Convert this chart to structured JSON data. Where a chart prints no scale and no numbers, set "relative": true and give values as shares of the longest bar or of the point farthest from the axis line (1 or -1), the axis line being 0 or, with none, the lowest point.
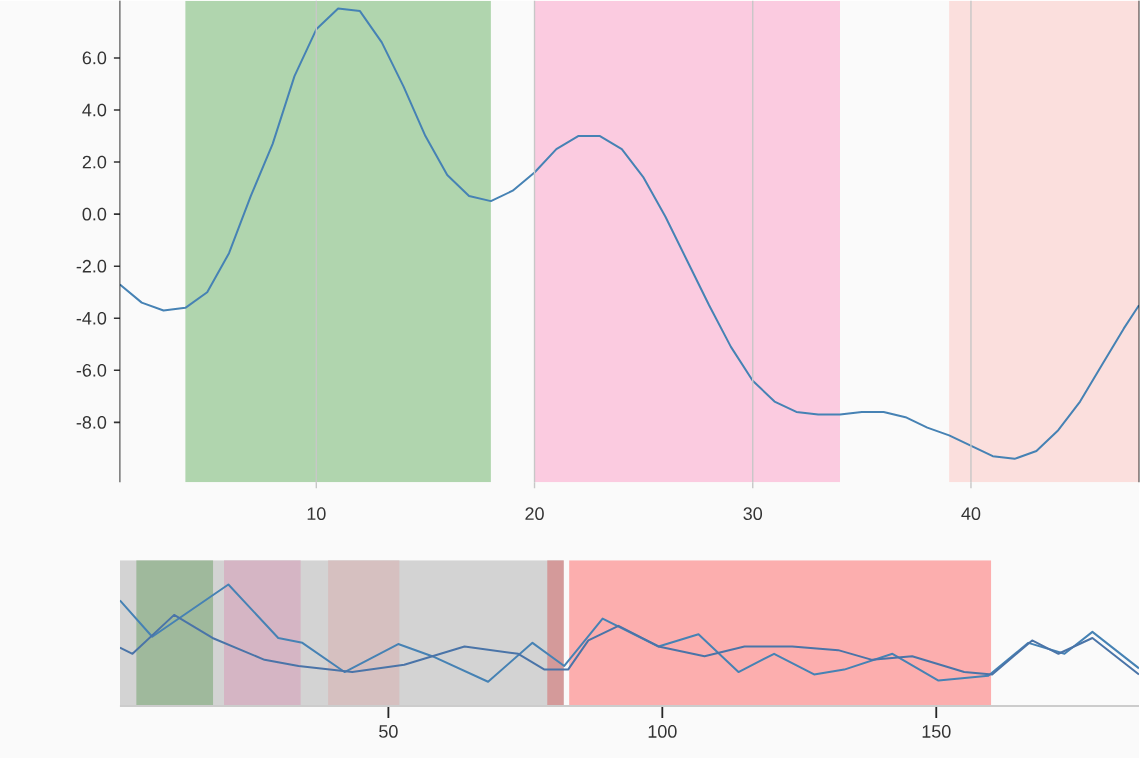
{
  "chart_data": [
    {
      "type": "line",
      "x": [
        1,
        2,
        3,
        4,
        5,
        6,
        7,
        8,
        9,
        10,
        11,
        12,
        13,
        14,
        15,
        16,
        17,
        18,
        19,
        20,
        21,
        22,
        23,
        24,
        25,
        26,
        27,
        28,
        29,
        30,
        31,
        32,
        33,
        34,
        35,
        36,
        37,
        38,
        39,
        40,
        41,
        42,
        43,
        44,
        45,
        46,
        47,
        47.7
      ],
      "values": [
        -2.7,
        -3.4,
        -3.7,
        -3.6,
        -3.0,
        -1.5,
        0.7,
        2.7,
        5.3,
        7.1,
        7.9,
        7.8,
        6.6,
        4.9,
        3.0,
        1.5,
        0.7,
        0.5,
        0.9,
        1.6,
        2.5,
        3.0,
        3.0,
        2.5,
        1.4,
        -0.1,
        -1.8,
        -3.5,
        -5.1,
        -6.4,
        -7.2,
        -7.6,
        -7.7,
        -7.7,
        -7.6,
        -7.6,
        -7.8,
        -8.2,
        -8.5,
        -8.9,
        -9.3,
        -9.4,
        -9.1,
        -8.3,
        -7.2,
        -5.8,
        -4.4,
        -3.5
      ],
      "color": "#4682b4",
      "xlim": [
        1,
        47.7
      ],
      "ylim": [
        -10.3,
        8.2
      ],
      "xticks": [
        10,
        20,
        30,
        40
      ],
      "yticks": [
        {
          "value": -8,
          "label": "-8.0"
        },
        {
          "value": -6,
          "label": "-6.0"
        },
        {
          "value": -4,
          "label": "-4.0"
        },
        {
          "value": -2,
          "label": "-2.0"
        },
        {
          "value": 0,
          "label": "0.0"
        },
        {
          "value": 2,
          "label": "2.0"
        },
        {
          "value": 4,
          "label": "4.0"
        },
        {
          "value": 6,
          "label": "6.0"
        }
      ],
      "grid": "x",
      "bands": [
        {
          "axis": "x",
          "from": 4,
          "to": 18,
          "color": "#b0d5ae"
        },
        {
          "axis": "x",
          "from": 20,
          "to": 34,
          "color": "#fbcbe0"
        },
        {
          "axis": "x",
          "from": 39,
          "to": 47.7,
          "color": "#fbdfdd"
        }
      ]
    },
    {
      "type": "line",
      "relative": true,
      "xlim": [
        1,
        187
      ],
      "xticks": [
        50,
        100,
        150
      ],
      "series": [
        {
          "color": "#4682b4",
          "x": [
            1,
            6.9,
            20.8,
            29.9,
            34.3,
            42.0,
            51.8,
            58.0,
            68.2,
            76.3,
            82.1,
            89.1,
            99.3,
            106.6,
            113.9,
            120.4,
            127.7,
            133.2,
            142.0,
            150.4,
            159.5,
            166.8,
            173.4,
            178.5,
            187
          ],
          "values": [
            0.87,
            0.57,
            1,
            0.56,
            0.52,
            0.28,
            0.51,
            0.41,
            0.2,
            0.52,
            0.33,
            0.72,
            0.49,
            0.59,
            0.28,
            0.43,
            0.26,
            0.3,
            0.43,
            0.21,
            0.25,
            0.52,
            0.43,
            0.61,
            0.31
          ]
        },
        {
          "color": "#4a74a8",
          "x": [
            1,
            3.3,
            10.9,
            17.9,
            27.4,
            33.6,
            43.4,
            52.9,
            63.9,
            73.7,
            78.5,
            82.8,
            86.5,
            92.0,
            99.3,
            107.7,
            115.0,
            123.7,
            132.1,
            138.3,
            145.6,
            155.1,
            160.2,
            167.5,
            172.3,
            178.5,
            187
          ],
          "values": [
            0.48,
            0.43,
            0.75,
            0.56,
            0.38,
            0.33,
            0.28,
            0.34,
            0.49,
            0.43,
            0.3,
            0.3,
            0.54,
            0.66,
            0.49,
            0.41,
            0.49,
            0.49,
            0.46,
            0.38,
            0.41,
            0.28,
            0.26,
            0.54,
            0.43,
            0.56,
            0.26
          ]
        }
      ],
      "bands": [
        {
          "axis": "x",
          "from": 1,
          "to": 82,
          "color": "#d3d3d3"
        },
        {
          "axis": "x",
          "from": 4,
          "to": 18,
          "color": "#9fb99c"
        },
        {
          "axis": "x",
          "from": 20,
          "to": 34,
          "color": "#d5b5c4"
        },
        {
          "axis": "x",
          "from": 39,
          "to": 52,
          "color": "#d6c0c0"
        },
        {
          "axis": "x",
          "from": 79,
          "to": 82,
          "color": "#d49a9a"
        },
        {
          "axis": "x",
          "from": 83,
          "to": 160,
          "color": "#fcaeae"
        }
      ]
    }
  ]
}
